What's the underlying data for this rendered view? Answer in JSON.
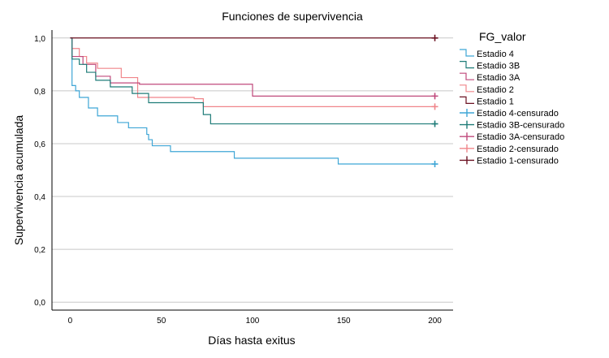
{
  "chart_data": {
    "type": "line",
    "title": "Funciones de supervivencia",
    "xlabel": "Días hasta exitus",
    "ylabel": "Supervivencia acumulada",
    "xlim": [
      -10,
      210
    ],
    "ylim": [
      -0.03,
      1.03
    ],
    "xticks": [
      0,
      50,
      100,
      150,
      200
    ],
    "xtick_labels": [
      "0",
      "50",
      "100",
      "150",
      "200"
    ],
    "yticks": [
      0.0,
      0.2,
      0.4,
      0.6,
      0.8,
      1.0
    ],
    "ytick_labels": [
      "0,0",
      "0,2",
      "0,4",
      "0,6",
      "0,8",
      "1,0"
    ],
    "grid": "horizontal",
    "legend": {
      "title": "FG_valor",
      "placement": "right",
      "entries": [
        "Estadio 4",
        "Estadio 3B",
        "Estadio 3A",
        "Estadio 2",
        "Estadio 1",
        "Estadio 4-censurado",
        "Estadio 3B-censurado",
        "Estadio 3A-censurado",
        "Estadio 2-censurado",
        "Estadio 1-censurado"
      ]
    },
    "series": [
      {
        "name": "Estadio 4",
        "color": "#3fa6d6",
        "x": [
          0,
          1,
          3,
          5,
          10,
          15,
          26,
          32,
          42,
          43,
          45,
          55,
          90,
          147,
          200
        ],
        "y": [
          1.0,
          0.82,
          0.8,
          0.775,
          0.735,
          0.705,
          0.68,
          0.66,
          0.635,
          0.615,
          0.592,
          0.57,
          0.545,
          0.523,
          0.523
        ],
        "censored": [
          {
            "x": 200,
            "y": 0.523
          }
        ]
      },
      {
        "name": "Estadio 3B",
        "color": "#1f7c78",
        "x": [
          0,
          1,
          5,
          9,
          14,
          22,
          34,
          43,
          73,
          77,
          200
        ],
        "y": [
          1.0,
          0.92,
          0.9,
          0.87,
          0.84,
          0.815,
          0.79,
          0.755,
          0.71,
          0.675,
          0.675
        ],
        "censored": [
          {
            "x": 200,
            "y": 0.675
          }
        ]
      },
      {
        "name": "Estadio 3A",
        "color": "#c04a7c",
        "x": [
          0,
          1,
          7,
          14,
          22,
          38,
          100,
          200
        ],
        "y": [
          1.0,
          0.93,
          0.9,
          0.855,
          0.83,
          0.825,
          0.78,
          0.78
        ],
        "censored": [
          {
            "x": 200,
            "y": 0.78
          }
        ]
      },
      {
        "name": "Estadio 2",
        "color": "#f0858a",
        "x": [
          0,
          1,
          5,
          9,
          15,
          28,
          37,
          68,
          73,
          200
        ],
        "y": [
          1.0,
          0.96,
          0.93,
          0.905,
          0.885,
          0.85,
          0.775,
          0.77,
          0.74,
          0.74
        ],
        "censored": [
          {
            "x": 200,
            "y": 0.74
          }
        ]
      },
      {
        "name": "Estadio 1",
        "color": "#6b1222",
        "x": [
          0,
          200
        ],
        "y": [
          1.0,
          1.0
        ],
        "censored": [
          {
            "x": 200,
            "y": 1.0
          }
        ]
      }
    ]
  }
}
